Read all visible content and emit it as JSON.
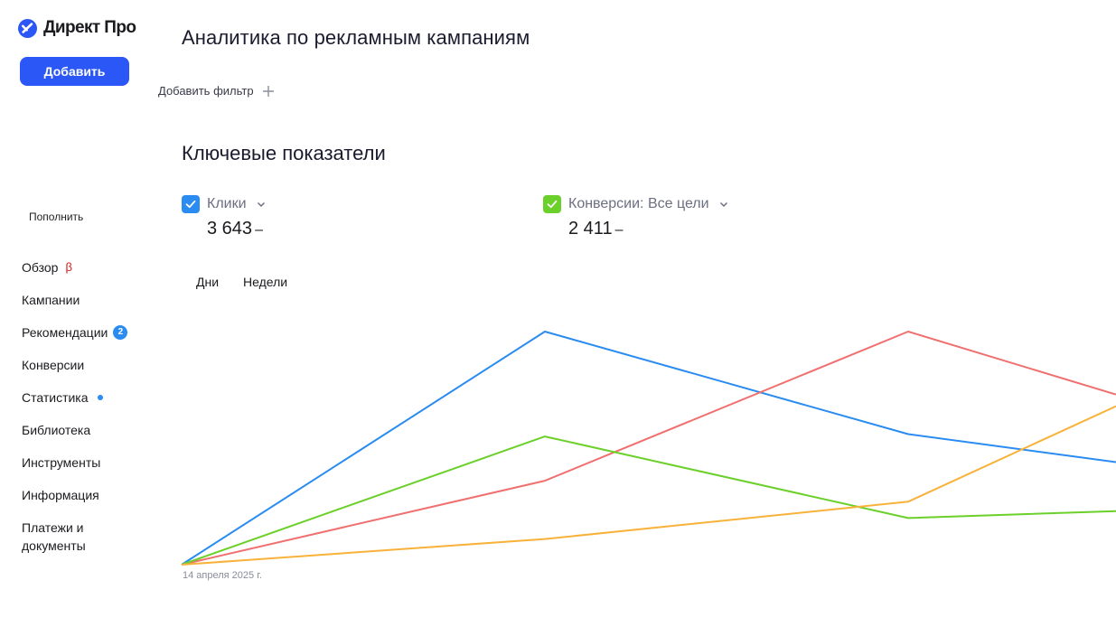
{
  "app": {
    "logo_text": "Директ Про",
    "add_button": "Добавить",
    "topup": "Пополнить"
  },
  "nav": {
    "overview": "Обзор",
    "overview_badge": "β",
    "campaigns": "Кампании",
    "recommendations": "Рекомендации",
    "recommendations_count": "2",
    "conversions": "Конверсии",
    "statistics": "Статистика",
    "library": "Библиотека",
    "tools": "Инструменты",
    "info": "Информация",
    "payments_line1": "Платежи и",
    "payments_line2": "документы"
  },
  "main": {
    "title": "Аналитика по рекламным кампаниям",
    "add_filter": "Добавить фильтр",
    "section_title": "Ключевые показатели",
    "metrics": [
      {
        "label": "Клики",
        "value": "3 643",
        "delta": "–",
        "color": "#2a8cf0",
        "icon": "chevron-down-icon"
      },
      {
        "label": "Конверсии: Все цели",
        "value": "2 411",
        "delta": "–",
        "color": "#6cd02a",
        "icon": "chevron-down-icon"
      }
    ],
    "periods": [
      "Дни",
      "Недели"
    ],
    "chart_date_label": "14 апреля 2025 г."
  },
  "colors": {
    "accent": "#2a57f5",
    "blue": "#2a8cf0",
    "green": "#6cd02a",
    "red": "#f07070",
    "orange": "#f8b23a"
  },
  "chart_data": {
    "type": "line",
    "x": [
      "14 апреля 2025 г.",
      "",
      "",
      ""
    ],
    "title": "",
    "xlabel": "",
    "ylabel": "",
    "grid": false,
    "series": [
      {
        "values": [
          0,
          100,
          56,
          44
        ],
        "color": "#2a8cf0"
      },
      {
        "values": [
          0,
          36,
          100,
          73
        ],
        "color": "#f07070"
      },
      {
        "values": [
          0,
          55,
          20,
          23
        ],
        "color": "#6cd02a"
      },
      {
        "values": [
          0,
          11,
          27,
          68
        ],
        "color": "#f8b23a"
      }
    ]
  }
}
